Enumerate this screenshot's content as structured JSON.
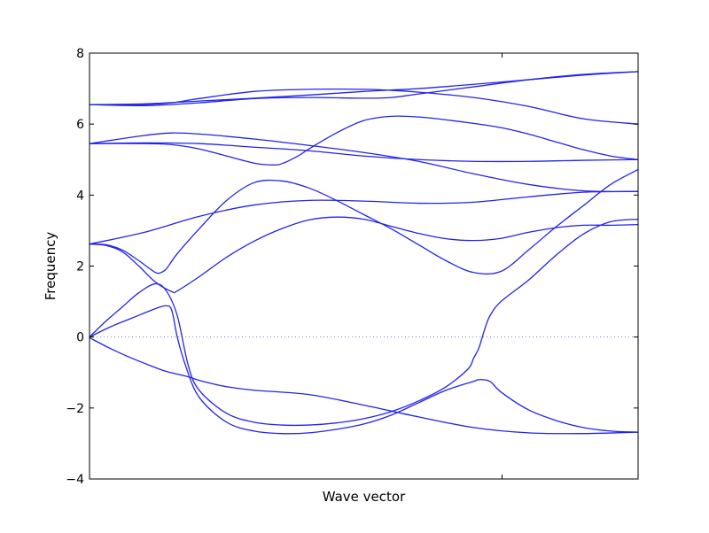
{
  "chart_data": {
    "type": "line",
    "title": "",
    "xlabel": "Wave vector",
    "ylabel": "Frequency",
    "xlim": [
      0,
      1
    ],
    "ylim": [
      -4,
      8
    ],
    "yticks": [
      -4,
      -2,
      0,
      2,
      4,
      6,
      8
    ],
    "ytick_labels": [
      "−4",
      "−2",
      "0",
      "2",
      "4",
      "6",
      "8"
    ],
    "xticks": [
      0.752
    ],
    "xtick_labels": [
      ""
    ],
    "grid": false,
    "legend": "none",
    "line_color": "#2222ee",
    "zero_line": {
      "y": 0,
      "style": "dotted",
      "color": "#7777cc"
    },
    "series": [
      {
        "x": [
          0,
          0.035,
          0.07,
          0.11,
          0.14,
          0.175,
          0.2,
          0.22,
          0.25,
          0.3,
          0.4,
          0.5,
          0.6,
          0.7,
          0.8,
          0.9,
          1
        ],
        "values": [
          -0.02,
          -0.3,
          -0.55,
          -0.8,
          -0.97,
          -1.1,
          -1.22,
          -1.3,
          -1.4,
          -1.5,
          -1.62,
          -1.92,
          -2.25,
          -2.55,
          -2.7,
          -2.72,
          -2.68
        ]
      },
      {
        "x": [
          0,
          0.04,
          0.08,
          0.12,
          0.14,
          0.15,
          0.16,
          0.175,
          0.2,
          0.25,
          0.3,
          0.35,
          0.4,
          0.45,
          0.5,
          0.55,
          0.6,
          0.65,
          0.7,
          0.71,
          0.73,
          0.75,
          0.8,
          0.85,
          0.9,
          0.95,
          1
        ],
        "values": [
          0,
          0.3,
          0.55,
          0.8,
          0.88,
          0.75,
          0.0,
          -0.8,
          -1.7,
          -2.4,
          -2.65,
          -2.72,
          -2.7,
          -2.6,
          -2.45,
          -2.2,
          -1.85,
          -1.5,
          -1.25,
          -1.2,
          -1.25,
          -1.55,
          -2.05,
          -2.35,
          -2.55,
          -2.65,
          -2.68
        ]
      },
      {
        "x": [
          0,
          0.03,
          0.06,
          0.09,
          0.12,
          0.14,
          0.16,
          0.18,
          0.2,
          0.25,
          0.3,
          0.35,
          0.4,
          0.45,
          0.5,
          0.55,
          0.6,
          0.65,
          0.69,
          0.7,
          0.71,
          0.72,
          0.73,
          0.75,
          0.8,
          0.85,
          0.9,
          0.95,
          1
        ],
        "values": [
          0,
          0.45,
          0.85,
          1.25,
          1.5,
          1.3,
          0.6,
          -0.8,
          -1.5,
          -2.15,
          -2.4,
          -2.48,
          -2.48,
          -2.42,
          -2.3,
          -2.1,
          -1.8,
          -1.4,
          -0.9,
          -0.6,
          -0.3,
          0.2,
          0.6,
          1.0,
          1.6,
          2.3,
          2.9,
          3.25,
          3.32
        ]
      },
      {
        "x": [
          0,
          0.03,
          0.06,
          0.09,
          0.12,
          0.13,
          0.14,
          0.16,
          0.2,
          0.25,
          0.3,
          0.35,
          0.4,
          0.45,
          0.5,
          0.55,
          0.6,
          0.65,
          0.7,
          0.75,
          0.8,
          0.85,
          0.9,
          0.95,
          1
        ],
        "values": [
          2.62,
          2.6,
          2.45,
          2.15,
          1.82,
          1.82,
          1.92,
          2.35,
          3.05,
          3.85,
          4.35,
          4.4,
          4.2,
          3.85,
          3.45,
          3.05,
          2.6,
          2.15,
          1.82,
          1.85,
          2.45,
          3.1,
          3.7,
          4.3,
          4.72
        ]
      },
      {
        "x": [
          0,
          0.03,
          0.06,
          0.09,
          0.12,
          0.15,
          0.16,
          0.2,
          0.25,
          0.3,
          0.35,
          0.4,
          0.45,
          0.5,
          0.55,
          0.6,
          0.65,
          0.7,
          0.75,
          0.8,
          0.85,
          0.9,
          0.95,
          1
        ],
        "values": [
          2.62,
          2.58,
          2.4,
          2.0,
          1.55,
          1.28,
          1.3,
          1.7,
          2.25,
          2.7,
          3.05,
          3.3,
          3.38,
          3.32,
          3.12,
          2.92,
          2.77,
          2.72,
          2.78,
          2.95,
          3.08,
          3.15,
          3.15,
          3.17
        ]
      },
      {
        "x": [
          0,
          0.1,
          0.2,
          0.3,
          0.4,
          0.5,
          0.6,
          0.7,
          0.8,
          0.9,
          1
        ],
        "values": [
          2.62,
          2.95,
          3.4,
          3.72,
          3.85,
          3.83,
          3.77,
          3.8,
          3.95,
          4.08,
          4.1
        ]
      },
      {
        "x": [
          0,
          0.1,
          0.15,
          0.2,
          0.25,
          0.3,
          0.33,
          0.35,
          0.38,
          0.4,
          0.45,
          0.5,
          0.55,
          0.6,
          0.65,
          0.7,
          0.75,
          0.8,
          0.85,
          0.9,
          0.95,
          1
        ],
        "values": [
          5.45,
          5.45,
          5.42,
          5.3,
          5.1,
          4.9,
          4.85,
          4.88,
          5.1,
          5.3,
          5.75,
          6.1,
          6.22,
          6.2,
          6.12,
          6.02,
          5.9,
          5.72,
          5.5,
          5.28,
          5.1,
          5.0
        ]
      },
      {
        "x": [
          0,
          0.1,
          0.2,
          0.3,
          0.4,
          0.5,
          0.6,
          0.7,
          0.8,
          0.9,
          1
        ],
        "values": [
          5.45,
          5.47,
          5.45,
          5.35,
          5.25,
          5.1,
          5.0,
          4.95,
          4.95,
          4.98,
          5.0
        ]
      },
      {
        "x": [
          0,
          0.1,
          0.15,
          0.2,
          0.3,
          0.4,
          0.5,
          0.6,
          0.7,
          0.8,
          0.9,
          1
        ],
        "values": [
          5.45,
          5.68,
          5.75,
          5.72,
          5.58,
          5.4,
          5.2,
          4.95,
          4.6,
          4.3,
          4.12,
          4.1
        ]
      },
      {
        "x": [
          0,
          0.1,
          0.15,
          0.2,
          0.3,
          0.4,
          0.5,
          0.55,
          0.6,
          0.7,
          0.8,
          0.9,
          1
        ],
        "values": [
          6.55,
          6.55,
          6.6,
          6.72,
          6.92,
          6.98,
          6.98,
          6.95,
          6.9,
          6.75,
          6.5,
          6.15,
          6.0
        ]
      },
      {
        "x": [
          0,
          0.1,
          0.2,
          0.3,
          0.4,
          0.5,
          0.55,
          0.6,
          0.7,
          0.8,
          0.9,
          1
        ],
        "values": [
          6.55,
          6.52,
          6.6,
          6.72,
          6.75,
          6.73,
          6.75,
          6.85,
          7.05,
          7.25,
          7.4,
          7.48
        ]
      },
      {
        "x": [
          0,
          0.1,
          0.2,
          0.3,
          0.4,
          0.5,
          0.6,
          0.7,
          0.8,
          0.9,
          1
        ],
        "values": [
          6.55,
          6.57,
          6.65,
          6.73,
          6.82,
          6.92,
          7.0,
          7.12,
          7.25,
          7.38,
          7.48
        ]
      }
    ]
  }
}
